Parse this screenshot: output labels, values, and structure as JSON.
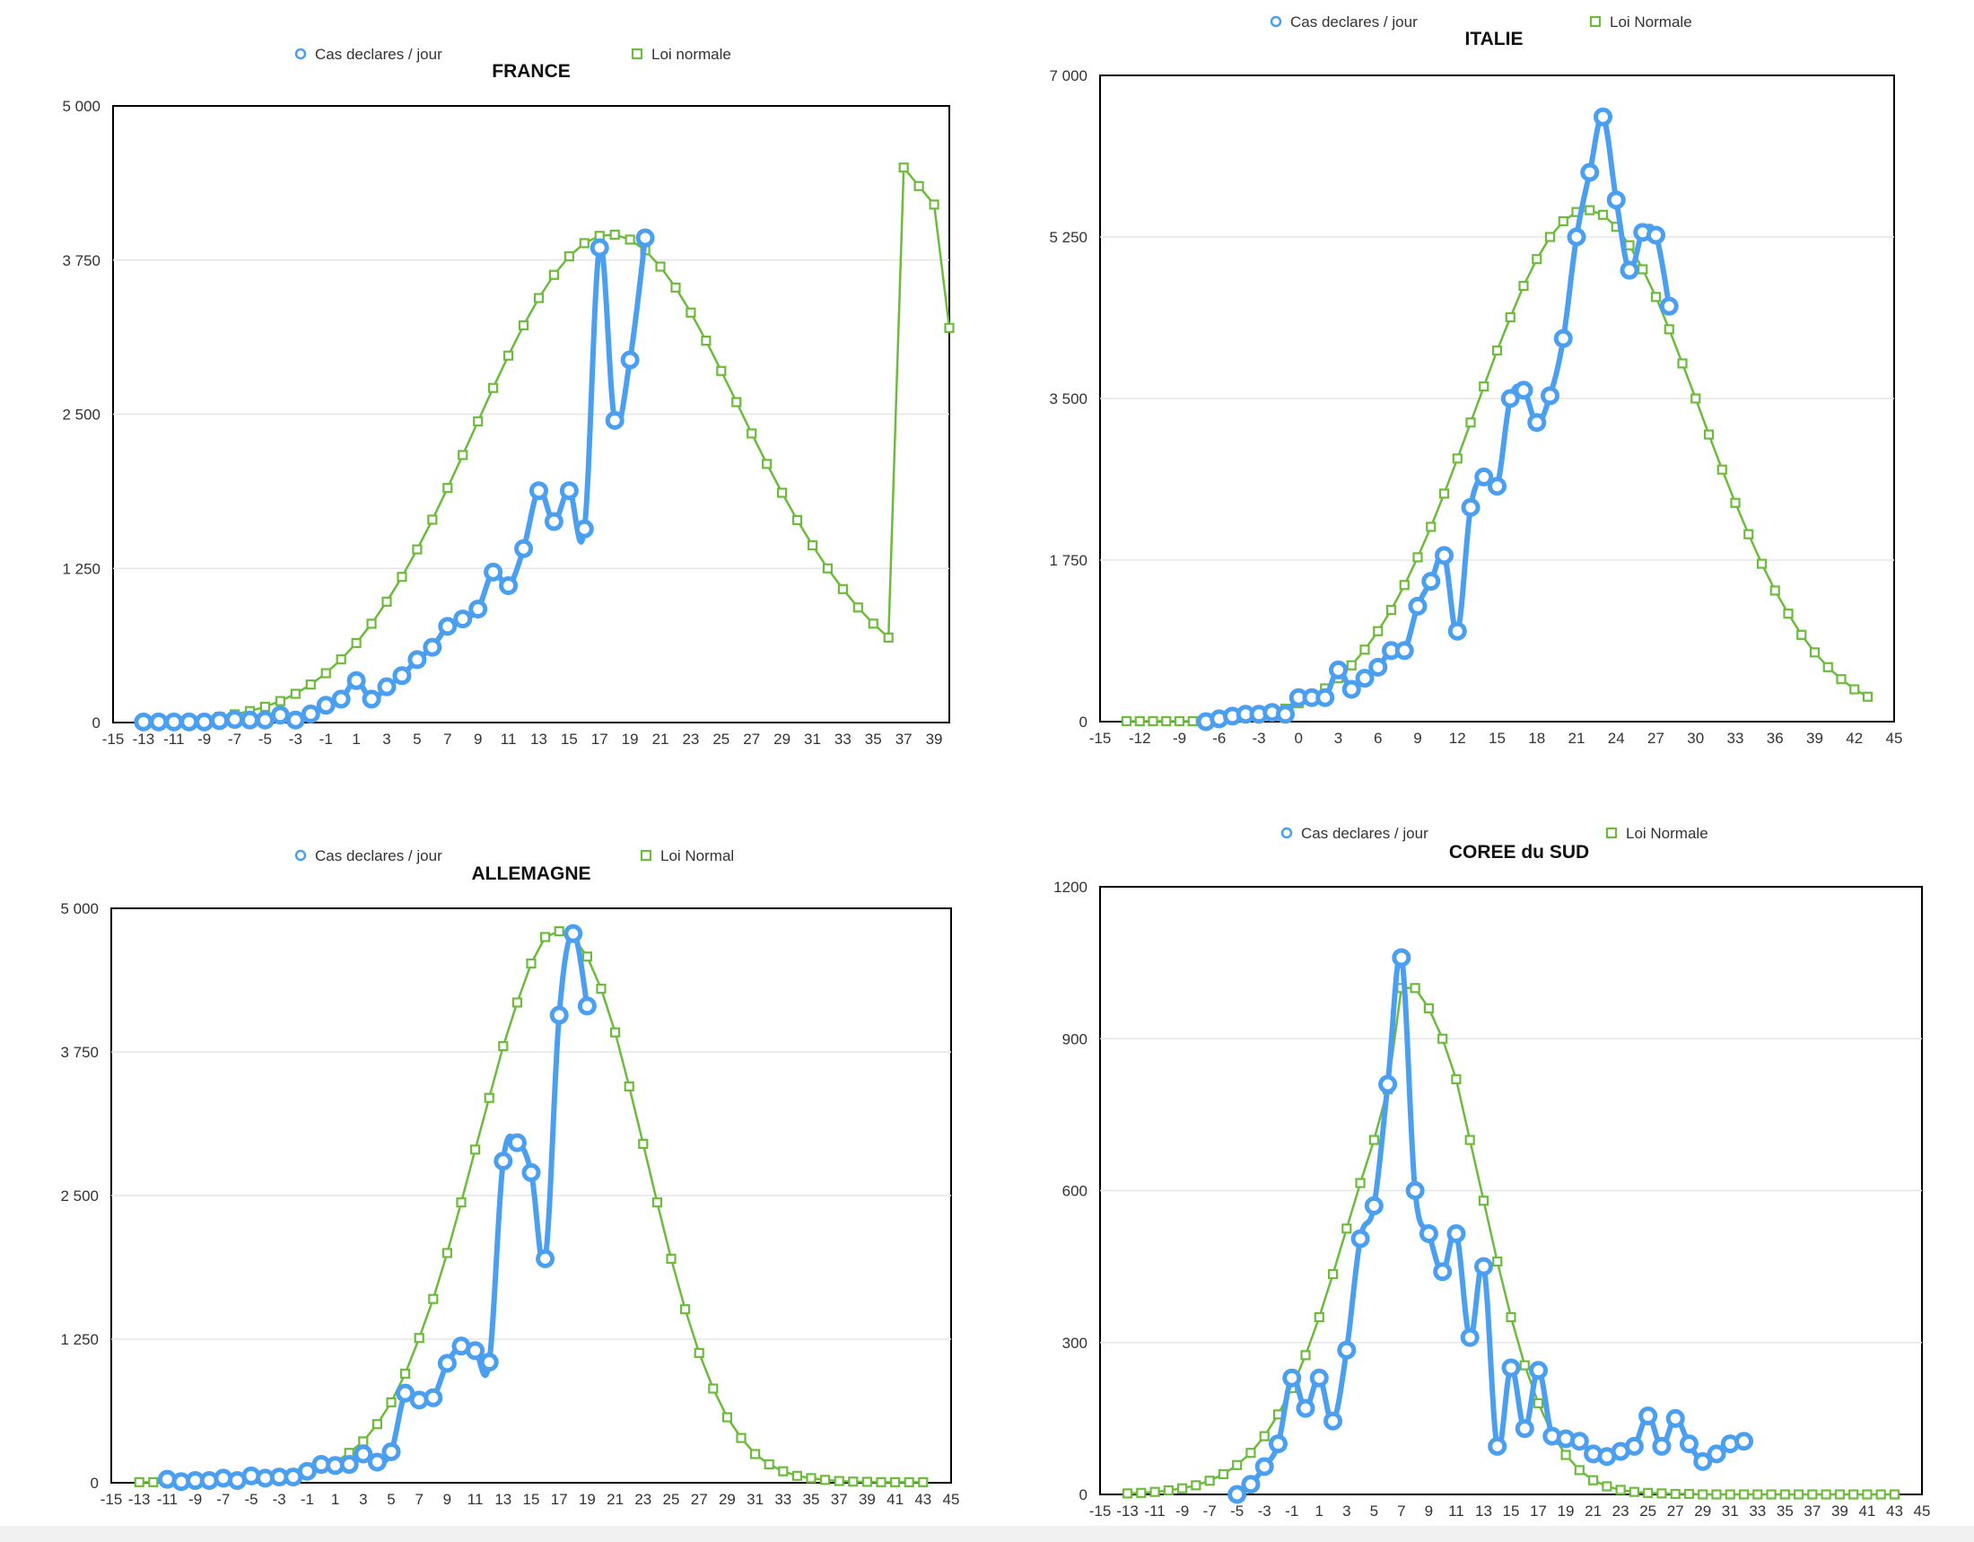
{
  "chart_data": [
    {
      "id": "france",
      "type": "line",
      "title": "FRANCE",
      "ylim": [
        0,
        5000
      ],
      "yticks": [
        0,
        1250,
        2500,
        3750,
        5000
      ],
      "ytick_labels": [
        "0",
        "1 250",
        "2 500",
        "3 750",
        "5 000"
      ],
      "xlim": [
        -15,
        40
      ],
      "xticks": [
        -15,
        -13,
        -11,
        -9,
        -7,
        -5,
        -3,
        -1,
        1,
        3,
        5,
        7,
        9,
        11,
        13,
        15,
        17,
        19,
        21,
        23,
        25,
        27,
        29,
        31,
        33,
        35,
        37,
        39
      ],
      "grid": true,
      "legend_position": "top",
      "series": [
        {
          "name": "Cas declares / jour",
          "color": "#4a9ff0",
          "marker": "circle",
          "x": [
            -13,
            -12,
            -11,
            -10,
            -9,
            -8,
            -7,
            -6,
            -5,
            -4,
            -3,
            -2,
            -1,
            0,
            1,
            2,
            3,
            4,
            5,
            6,
            7,
            8,
            9,
            10,
            11,
            12,
            13,
            14,
            15,
            16,
            17,
            18,
            19,
            20
          ],
          "y": [
            5,
            5,
            5,
            5,
            5,
            15,
            25,
            20,
            20,
            60,
            20,
            70,
            140,
            190,
            340,
            190,
            290,
            380,
            510,
            610,
            780,
            840,
            920,
            1220,
            1110,
            1410,
            1880,
            1630,
            1880,
            1570,
            3850,
            2450,
            2940,
            3930
          ]
        },
        {
          "name": "Loi normale",
          "color": "#6dbb3c",
          "marker": "square",
          "x": [
            -13,
            -12,
            -11,
            -10,
            -9,
            -8,
            -7,
            -6,
            -5,
            -4,
            -3,
            -2,
            -1,
            0,
            1,
            2,
            3,
            4,
            5,
            6,
            7,
            8,
            9,
            10,
            11,
            12,
            13,
            14,
            15,
            16,
            17,
            18,
            19,
            20,
            21,
            22,
            23,
            24,
            25,
            26,
            27,
            28,
            29,
            30,
            31,
            32,
            33,
            34,
            35,
            36,
            37,
            38,
            39,
            40
          ],
          "y": [
            5,
            9,
            14,
            21,
            31,
            46,
            66,
            93,
            128,
            174,
            233,
            308,
            400,
            512,
            645,
            801,
            980,
            1181,
            1404,
            1645,
            1902,
            2169,
            2442,
            2713,
            2975,
            3221,
            3442,
            3630,
            3780,
            3887,
            3946,
            3956,
            3916,
            3829,
            3697,
            3527,
            3324,
            3096,
            2851,
            2598,
            2344,
            2097,
            1863,
            1642,
            1437,
            1250,
            1082,
            933,
            802,
            689,
            4500,
            4350,
            4200,
            3200
          ]
        }
      ]
    },
    {
      "id": "italie",
      "type": "line",
      "title": "ITALIE",
      "ylim": [
        0,
        7000
      ],
      "yticks": [
        0,
        1750,
        3500,
        5250,
        7000
      ],
      "ytick_labels": [
        "0",
        "1 750",
        "3 500",
        "5 250",
        "7 000"
      ],
      "xlim": [
        -15,
        45
      ],
      "xticks": [
        -15,
        -12,
        -9,
        -6,
        -3,
        0,
        3,
        6,
        9,
        12,
        15,
        18,
        21,
        24,
        27,
        30,
        33,
        36,
        39,
        42,
        45
      ],
      "grid": true,
      "legend_position": "top",
      "series": [
        {
          "name": "Cas declares / jour",
          "color": "#4a9ff0",
          "marker": "circle",
          "x": [
            -7,
            -6,
            -5,
            -4,
            -3,
            -2,
            -1,
            0,
            1,
            2,
            3,
            4,
            5,
            6,
            7,
            8,
            9,
            10,
            11,
            12,
            13,
            14,
            15,
            16,
            17,
            18,
            19,
            20,
            21,
            22,
            23,
            24,
            25,
            26,
            27,
            28
          ],
          "y": [
            0,
            30,
            60,
            80,
            80,
            100,
            80,
            260,
            260,
            260,
            560,
            350,
            470,
            590,
            770,
            770,
            1250,
            1520,
            1800,
            980,
            2320,
            2650,
            2550,
            3500,
            3590,
            3240,
            3530,
            4150,
            5250,
            5950,
            6550,
            5650,
            4890,
            5300,
            5270,
            4500
          ]
        },
        {
          "name": "Loi Normale",
          "color": "#6dbb3c",
          "marker": "square",
          "x": [
            -13,
            -12,
            -11,
            -10,
            -9,
            -8,
            -7,
            -6,
            -5,
            -4,
            -3,
            -2,
            -1,
            0,
            1,
            2,
            3,
            4,
            5,
            6,
            7,
            8,
            9,
            10,
            11,
            12,
            13,
            14,
            15,
            16,
            17,
            18,
            19,
            20,
            21,
            22,
            23,
            24,
            25,
            26,
            27,
            28,
            29,
            30,
            31,
            32,
            33,
            34,
            35,
            36,
            37,
            38,
            39,
            40,
            41,
            42,
            43
          ],
          "y": [
            5,
            5,
            5,
            5,
            5,
            5,
            10,
            20,
            30,
            45,
            70,
            100,
            140,
            200,
            270,
            360,
            470,
            610,
            780,
            980,
            1210,
            1480,
            1780,
            2110,
            2470,
            2850,
            3240,
            3630,
            4020,
            4380,
            4720,
            5010,
            5250,
            5420,
            5520,
            5540,
            5490,
            5360,
            5160,
            4900,
            4600,
            4250,
            3880,
            3500,
            3110,
            2730,
            2370,
            2030,
            1710,
            1420,
            1170,
            940,
            750,
            590,
            460,
            350,
            270
          ]
        }
      ]
    },
    {
      "id": "allemagne",
      "type": "line",
      "title": "ALLEMAGNE",
      "ylim": [
        0,
        5000
      ],
      "yticks": [
        0,
        1250,
        2500,
        3750,
        5000
      ],
      "ytick_labels": [
        "0",
        "1 250",
        "2 500",
        "3 750",
        "5 000"
      ],
      "xlim": [
        -15,
        45
      ],
      "xticks": [
        -15,
        -13,
        -11,
        -9,
        -7,
        -5,
        -3,
        -1,
        1,
        3,
        5,
        7,
        9,
        11,
        13,
        15,
        17,
        19,
        21,
        23,
        25,
        27,
        29,
        31,
        33,
        35,
        37,
        39,
        41,
        43,
        45
      ],
      "grid": true,
      "legend_position": "top",
      "series": [
        {
          "name": "Cas declares / jour",
          "color": "#4a9ff0",
          "marker": "circle",
          "x": [
            -11,
            -10,
            -9,
            -8,
            -7,
            -6,
            -5,
            -4,
            -3,
            -2,
            -1,
            0,
            1,
            2,
            3,
            4,
            5,
            6,
            7,
            8,
            9,
            10,
            11,
            12,
            13,
            14,
            15,
            16,
            17,
            18,
            19
          ],
          "y": [
            30,
            10,
            20,
            20,
            40,
            20,
            60,
            40,
            50,
            50,
            100,
            160,
            150,
            160,
            250,
            180,
            270,
            780,
            720,
            740,
            1040,
            1190,
            1150,
            1050,
            2800,
            2960,
            2700,
            1950,
            4070,
            4780,
            4150
          ]
        },
        {
          "name": "Loi Normal",
          "color": "#6dbb3c",
          "marker": "square",
          "x": [
            -13,
            -12,
            -11,
            -10,
            -9,
            -8,
            -7,
            -6,
            -5,
            -4,
            -3,
            -2,
            -1,
            0,
            1,
            2,
            3,
            4,
            5,
            6,
            7,
            8,
            9,
            10,
            11,
            12,
            13,
            14,
            15,
            16,
            17,
            18,
            19,
            20,
            21,
            22,
            23,
            24,
            25,
            26,
            27,
            28,
            29,
            30,
            31,
            32,
            33,
            34,
            35,
            36,
            37,
            38,
            39,
            40,
            41,
            42,
            43
          ],
          "y": [
            5,
            5,
            5,
            10,
            15,
            20,
            30,
            40,
            50,
            60,
            70,
            80,
            100,
            130,
            180,
            260,
            360,
            510,
            700,
            950,
            1260,
            1600,
            2000,
            2440,
            2900,
            3350,
            3800,
            4180,
            4520,
            4750,
            4800,
            4750,
            4580,
            4300,
            3920,
            3450,
            2950,
            2440,
            1950,
            1510,
            1130,
            820,
            570,
            390,
            250,
            160,
            100,
            60,
            40,
            25,
            15,
            10,
            8,
            5,
            5,
            5,
            5
          ]
        }
      ]
    },
    {
      "id": "coree",
      "type": "line",
      "title": "COREE du SUD",
      "ylim": [
        0,
        1200
      ],
      "yticks": [
        0,
        300,
        600,
        900,
        1200
      ],
      "ytick_labels": [
        "0",
        "300",
        "600",
        "900",
        "1200"
      ],
      "xlim": [
        -15,
        45
      ],
      "xticks": [
        -15,
        -13,
        -11,
        -9,
        -7,
        -5,
        -3,
        -1,
        1,
        3,
        5,
        7,
        9,
        11,
        13,
        15,
        17,
        19,
        21,
        23,
        25,
        27,
        29,
        31,
        33,
        35,
        37,
        39,
        41,
        43,
        45
      ],
      "grid": true,
      "legend_position": "top",
      "series": [
        {
          "name": "Cas declares / jour",
          "color": "#4a9ff0",
          "marker": "circle",
          "x": [
            -5,
            -4,
            -3,
            -2,
            -1,
            0,
            1,
            2,
            3,
            4,
            5,
            6,
            7,
            8,
            9,
            10,
            11,
            12,
            13,
            14,
            15,
            16,
            17,
            18,
            19,
            20,
            21,
            22,
            23,
            24,
            25,
            26,
            27,
            28,
            29,
            30,
            31,
            32
          ],
          "y": [
            0,
            20,
            55,
            100,
            230,
            170,
            230,
            145,
            285,
            505,
            570,
            810,
            1060,
            600,
            515,
            440,
            515,
            310,
            450,
            95,
            250,
            130,
            245,
            115,
            110,
            105,
            80,
            75,
            85,
            95,
            155,
            95,
            150,
            100,
            65,
            80,
            100,
            105
          ]
        },
        {
          "name": "Loi Normale",
          "color": "#6dbb3c",
          "marker": "square",
          "x": [
            -13,
            -12,
            -11,
            -10,
            -9,
            -8,
            -7,
            -6,
            -5,
            -4,
            -3,
            -2,
            -1,
            0,
            1,
            2,
            3,
            4,
            5,
            6,
            7,
            8,
            9,
            10,
            11,
            12,
            13,
            14,
            15,
            16,
            17,
            18,
            19,
            20,
            21,
            22,
            23,
            24,
            25,
            26,
            27,
            28,
            29,
            30,
            31,
            32,
            33,
            34,
            35,
            36,
            37,
            38,
            39,
            40,
            41,
            42,
            43
          ],
          "y": [
            2,
            3,
            5,
            8,
            12,
            18,
            27,
            40,
            58,
            82,
            115,
            158,
            210,
            275,
            350,
            435,
            525,
            615,
            700,
            800,
            1000,
            1000,
            960,
            900,
            820,
            700,
            580,
            460,
            350,
            255,
            180,
            120,
            78,
            48,
            28,
            16,
            9,
            5,
            3,
            2,
            1,
            1,
            0,
            0,
            0,
            0,
            0,
            0,
            0,
            0,
            0,
            0,
            0,
            0,
            0,
            0,
            0
          ]
        }
      ]
    }
  ]
}
